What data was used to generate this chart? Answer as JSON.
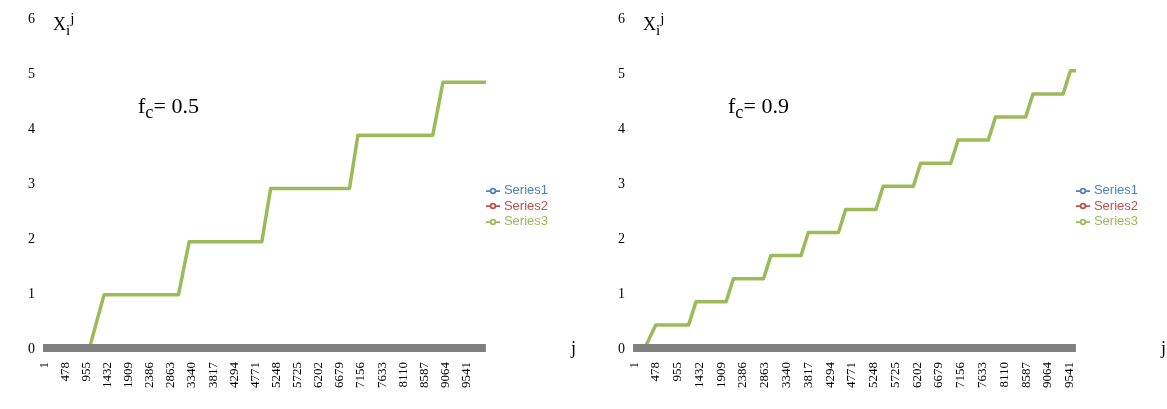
{
  "chart_data": [
    {
      "type": "line",
      "annotations": [
        "f$_{c}$= 0.5"
      ],
      "ylabel": "X$_{i}$$^{j}$",
      "xlabel": "j",
      "x": [
        1,
        1050,
        1380,
        3060,
        3300,
        4940,
        5140,
        6920,
        7110,
        8800,
        9030,
        10000
      ],
      "series": [
        {
          "name": "Series1",
          "color": "#4f81bd",
          "values": [
            null,
            null,
            null,
            null,
            null,
            null,
            null,
            null,
            null,
            null,
            null,
            null
          ]
        },
        {
          "name": "Series2",
          "color": "#c0504d",
          "values": [
            null,
            null,
            null,
            null,
            null,
            null,
            null,
            null,
            null,
            null,
            null,
            null
          ]
        },
        {
          "name": "Series3",
          "color": "#9bbb59",
          "values": [
            0,
            0,
            0.97,
            0.97,
            1.93,
            1.93,
            2.9,
            2.9,
            3.87,
            3.87,
            4.83,
            4.83
          ]
        }
      ],
      "xlim": [
        1,
        10000
      ],
      "xticks": [
        1,
        478,
        955,
        1432,
        1909,
        2386,
        2863,
        3340,
        3817,
        4294,
        4771,
        5248,
        5725,
        6202,
        6679,
        7156,
        7633,
        8110,
        8587,
        9064,
        9541
      ],
      "ylim": [
        0,
        6
      ],
      "yticks": [
        0,
        1,
        2,
        3,
        4,
        5,
        6
      ],
      "grid": false,
      "legend": "right",
      "marker": "none"
    },
    {
      "type": "line",
      "annotations": [
        "f$_{c}$= 0.9"
      ],
      "ylabel": "X$_{i}$$^{j}$",
      "xlabel": "j",
      "x": [
        1,
        260,
        500,
        1220,
        1380,
        2040,
        2200,
        2860,
        3020,
        3680,
        3840,
        4500,
        4660,
        5320,
        5480,
        6140,
        6300,
        6960,
        7120,
        7780,
        7940,
        8600,
        8760,
        9420,
        9580,
        9700
      ],
      "series": [
        {
          "name": "Series1",
          "color": "#4f81bd",
          "values": [
            null,
            null,
            null,
            null,
            null,
            null,
            null,
            null,
            null,
            null,
            null,
            null,
            null,
            null,
            null,
            null,
            null,
            null,
            null,
            null,
            null,
            null,
            null,
            null,
            null,
            null
          ]
        },
        {
          "name": "Series2",
          "color": "#c0504d",
          "values": [
            null,
            null,
            null,
            null,
            null,
            null,
            null,
            null,
            null,
            null,
            null,
            null,
            null,
            null,
            null,
            null,
            null,
            null,
            null,
            null,
            null,
            null,
            null,
            null,
            null,
            null
          ]
        },
        {
          "name": "Series3",
          "color": "#9bbb59",
          "values": [
            0,
            0,
            0.42,
            0.42,
            0.84,
            0.84,
            1.26,
            1.26,
            1.68,
            1.68,
            2.1,
            2.1,
            2.52,
            2.52,
            2.94,
            2.94,
            3.36,
            3.36,
            3.78,
            3.78,
            4.2,
            4.2,
            4.62,
            4.62,
            5.04,
            5.04
          ]
        }
      ],
      "xlim": [
        1,
        9700
      ],
      "xticks": [
        1,
        478,
        955,
        1432,
        1909,
        2386,
        2863,
        3340,
        3817,
        4294,
        4771,
        5248,
        5725,
        6202,
        6679,
        7156,
        7633,
        8110,
        8587,
        9064,
        9541
      ],
      "ylim": [
        0,
        6
      ],
      "yticks": [
        0,
        1,
        2,
        3,
        4,
        5,
        6
      ],
      "grid": false,
      "legend": "right",
      "marker": "none"
    }
  ]
}
